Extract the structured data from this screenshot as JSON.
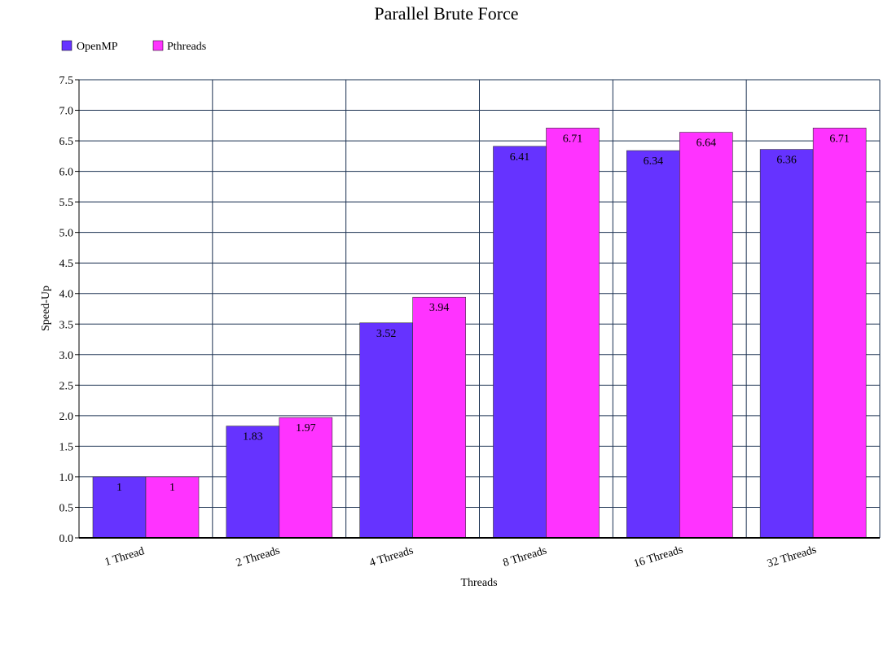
{
  "chart_data": {
    "type": "bar",
    "title": "Parallel Brute Force",
    "xlabel": "Threads",
    "ylabel": "Speed-Up",
    "categories": [
      "1 Thread",
      "2 Threads",
      "4 Threads",
      "8 Threads",
      "16 Threads",
      "32 Threads"
    ],
    "series": [
      {
        "name": "OpenMP",
        "values": [
          1,
          1.83,
          3.52,
          6.41,
          6.34,
          6.36
        ],
        "labels": [
          "1",
          "1.83",
          "3.52",
          "6.41",
          "6.34",
          "6.36"
        ],
        "color": "#6633ff"
      },
      {
        "name": "Pthreads",
        "values": [
          1,
          1.97,
          3.94,
          6.71,
          6.64,
          6.71
        ],
        "labels": [
          "1",
          "1.97",
          "3.94",
          "6.71",
          "6.64",
          "6.71"
        ],
        "color": "#ff33ff"
      }
    ],
    "ylim": [
      0,
      7.5
    ],
    "yticks": [
      "0.0",
      "0.5",
      "1.0",
      "1.5",
      "2.0",
      "2.5",
      "3.0",
      "3.5",
      "4.0",
      "4.5",
      "5.0",
      "5.5",
      "6.0",
      "6.5",
      "7.0",
      "7.5"
    ],
    "grid": true,
    "legend_position": "top-left",
    "gridline_color": "#1a3050"
  }
}
